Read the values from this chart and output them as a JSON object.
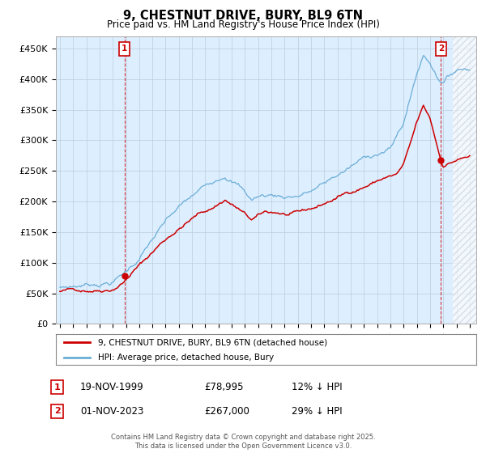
{
  "title": "9, CHESTNUT DRIVE, BURY, BL9 6TN",
  "subtitle": "Price paid vs. HM Land Registry's House Price Index (HPI)",
  "ylim": [
    0,
    470000
  ],
  "yticks": [
    0,
    50000,
    100000,
    150000,
    200000,
    250000,
    300000,
    350000,
    400000,
    450000
  ],
  "ytick_labels": [
    "£0",
    "£50K",
    "£100K",
    "£150K",
    "£200K",
    "£250K",
    "£300K",
    "£350K",
    "£400K",
    "£450K"
  ],
  "xlim_start": 1994.7,
  "xlim_end": 2026.5,
  "purchase1_date": 1999.88,
  "purchase1_price": 78995,
  "purchase1_label": "1",
  "purchase2_date": 2023.83,
  "purchase2_price": 267000,
  "purchase2_label": "2",
  "line_color_hpi": "#6baed6",
  "line_color_price": "#cc0000",
  "chart_bg": "#ddeeff",
  "legend_entry1": "9, CHESTNUT DRIVE, BURY, BL9 6TN (detached house)",
  "legend_entry2": "HPI: Average price, detached house, Bury",
  "annotation1_date": "19-NOV-1999",
  "annotation1_price": "£78,995",
  "annotation1_hpi": "12% ↓ HPI",
  "annotation2_date": "01-NOV-2023",
  "annotation2_price": "£267,000",
  "annotation2_hpi": "29% ↓ HPI",
  "footer": "Contains HM Land Registry data © Crown copyright and database right 2025.\nThis data is licensed under the Open Government Licence v3.0.",
  "background_color": "#ffffff",
  "grid_color": "#bbccdd"
}
